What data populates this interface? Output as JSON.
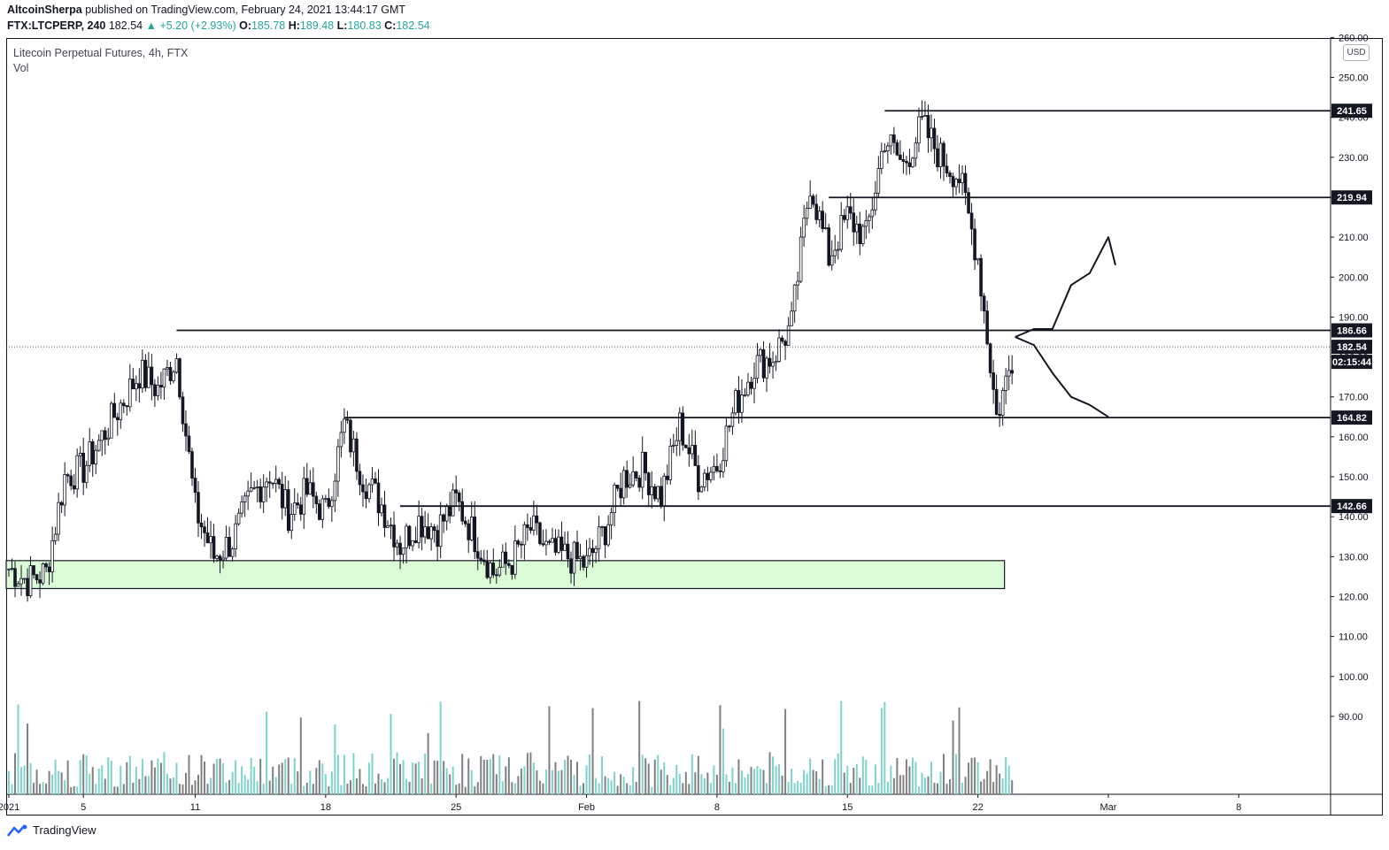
{
  "header": {
    "author": "AltcoinSherpa",
    "published": " published on TradingView.com, February 24, 2021 13:44:17 GMT",
    "symbol": "FTX:LTCPERP, 240",
    "last": "182.54",
    "change": "+5.20 (+2.93%)",
    "o_label": "O:",
    "o": "185.78",
    "h_label": "H:",
    "h": "189.48",
    "l_label": "L:",
    "l": "180.83",
    "c_label": "C:",
    "c": "182.54"
  },
  "legend": {
    "title": "Litecoin Perpetual Futures, 4h, FTX",
    "vol": "Vol"
  },
  "currency": "USD",
  "footer": {
    "brand": "TradingView"
  },
  "colors": {
    "up": "#26a69a",
    "zone": "#dcfcd8",
    "bar_up": "#7fd3c9",
    "bar_down": "#808080"
  },
  "chart_data": {
    "type": "candlestick",
    "title": "Litecoin Perpetual Futures, 4h, FTX",
    "x_ticks": [
      "2021",
      "5",
      "11",
      "18",
      "25",
      "Feb",
      "8",
      "15",
      "22",
      "Mar",
      "8"
    ],
    "y_ticks": [
      "90.00",
      "100.00",
      "110.00",
      "120.00",
      "130.00",
      "140.00",
      "150.00",
      "160.00",
      "170.00",
      "180.00",
      "190.00",
      "200.00",
      "210.00",
      "220.00",
      "230.00",
      "240.00",
      "250.00",
      "260.00"
    ],
    "ylim": [
      86,
      270
    ],
    "last_price": 182.54,
    "countdown": "02:15:44",
    "levels": [
      {
        "value": 241.65,
        "label": "241.65",
        "from": "Feb 17"
      },
      {
        "value": 219.94,
        "label": "219.94",
        "from": "Feb 14"
      },
      {
        "value": 186.66,
        "label": "186.66",
        "from": "Jan 10"
      },
      {
        "value": 164.82,
        "label": "164.82",
        "from": "Jan 19"
      },
      {
        "value": 142.66,
        "label": "142.66",
        "from": "Jan 22"
      }
    ],
    "support_zone": {
      "low": 122,
      "high": 129,
      "from": "Jan 1",
      "to": "Feb 23"
    },
    "price_path": [
      [
        "Jan 1",
        127
      ],
      [
        "Jan 2",
        124
      ],
      [
        "Jan 3",
        126
      ],
      [
        "Jan 4",
        150
      ],
      [
        "Jan 5",
        152
      ],
      [
        "Jan 6",
        160
      ],
      [
        "Jan 7",
        168
      ],
      [
        "Jan 8",
        176
      ],
      [
        "Jan 9",
        172
      ],
      [
        "Jan 10",
        180
      ],
      [
        "Jan 11",
        142
      ],
      [
        "Jan 12",
        130
      ],
      [
        "Jan 13",
        134
      ],
      [
        "Jan 14",
        145
      ],
      [
        "Jan 15",
        151
      ],
      [
        "Jan 16",
        141
      ],
      [
        "Jan 17",
        146
      ],
      [
        "Jan 18",
        141
      ],
      [
        "Jan 19",
        163
      ],
      [
        "Jan 20",
        150
      ],
      [
        "Jan 21",
        143
      ],
      [
        "Jan 22",
        133
      ],
      [
        "Jan 23",
        139
      ],
      [
        "Jan 24",
        137
      ],
      [
        "Jan 25",
        144
      ],
      [
        "Jan 26",
        135
      ],
      [
        "Jan 27",
        126
      ],
      [
        "Jan 28",
        129
      ],
      [
        "Jan 29",
        137
      ],
      [
        "Jan 30",
        131
      ],
      [
        "Jan 31",
        130
      ],
      [
        "Feb 1",
        128
      ],
      [
        "Feb 2",
        137
      ],
      [
        "Feb 3",
        150
      ],
      [
        "Feb 4",
        152
      ],
      [
        "Feb 5",
        145
      ],
      [
        "Feb 6",
        163
      ],
      [
        "Feb 7",
        150
      ],
      [
        "Feb 8",
        153
      ],
      [
        "Feb 9",
        168
      ],
      [
        "Feb 10",
        178
      ],
      [
        "Feb 11",
        180
      ],
      [
        "Feb 12",
        188
      ],
      [
        "Feb 13",
        224
      ],
      [
        "Feb 14",
        205
      ],
      [
        "Feb 15",
        215
      ],
      [
        "Feb 16",
        210
      ],
      [
        "Feb 17",
        235
      ],
      [
        "Feb 18",
        228
      ],
      [
        "Feb 19",
        238
      ],
      [
        "Feb 20",
        230
      ],
      [
        "Feb 21",
        225
      ],
      [
        "Feb 22",
        205
      ],
      [
        "Feb 23",
        165
      ],
      [
        "Feb 24",
        182.54
      ]
    ],
    "projection_up": [
      [
        "Feb 24",
        185
      ],
      [
        "Feb 25",
        187
      ],
      [
        "Feb 26",
        187
      ],
      [
        "Feb 27",
        198
      ],
      [
        "Feb 28",
        201
      ],
      [
        "Mar 1",
        210
      ],
      [
        "Mar 1",
        203
      ]
    ],
    "projection_down": [
      [
        "Feb 24",
        185
      ],
      [
        "Feb 25",
        183
      ],
      [
        "Feb 26",
        176
      ],
      [
        "Feb 27",
        170
      ],
      [
        "Feb 28",
        168
      ],
      [
        "Mar 1",
        165
      ]
    ]
  }
}
